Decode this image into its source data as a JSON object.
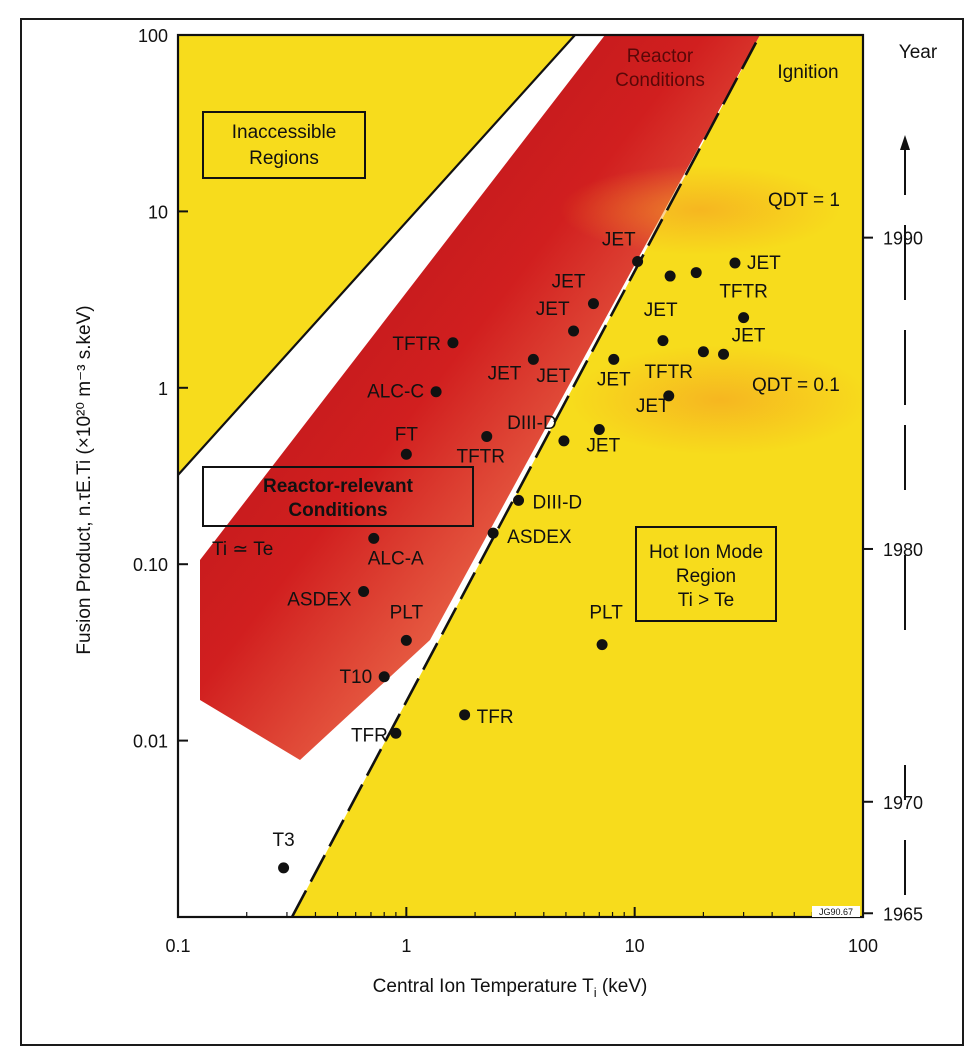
{
  "chart_data": {
    "type": "scatter",
    "x_scale": "log",
    "y_scale": "log",
    "xlim": [
      0.1,
      100
    ],
    "ylim": [
      0.001,
      100
    ],
    "xlabel": "Central Ion Temperature T",
    "xlabel_sub": "i",
    "xlabel_unit": " (keV)",
    "ylabel": "Fusion Product, n.τE.Ti (×10²⁰ m⁻³ s.keV)",
    "x_ticks": [
      {
        "value": 0.1,
        "label": "0.1"
      },
      {
        "value": 1,
        "label": "1"
      },
      {
        "value": 10,
        "label": "10"
      },
      {
        "value": 100,
        "label": "100"
      }
    ],
    "y_ticks": [
      {
        "value": 0.01,
        "label": "0.01"
      },
      {
        "value": 0.1,
        "label": "0.10"
      },
      {
        "value": 1,
        "label": "1"
      },
      {
        "value": 10,
        "label": "10"
      },
      {
        "value": 100,
        "label": "100"
      }
    ],
    "year_axis": {
      "title": "Year",
      "ticks": [
        {
          "year": 1965,
          "at_y": 0.00105
        },
        {
          "year": 1970,
          "at_y": 0.0045
        },
        {
          "year": 1980,
          "at_y": 0.122
        },
        {
          "year": 1990,
          "at_y": 7.1
        }
      ]
    },
    "points": [
      {
        "label": "T3",
        "x": 0.29,
        "y": 0.0019
      },
      {
        "label": "TFR",
        "x": 0.9,
        "y": 0.011
      },
      {
        "label": "TFR",
        "x": 1.8,
        "y": 0.014
      },
      {
        "label": "T10",
        "x": 0.8,
        "y": 0.023
      },
      {
        "label": "PLT",
        "x": 1.0,
        "y": 0.037
      },
      {
        "label": "ASDEX",
        "x": 0.65,
        "y": 0.07
      },
      {
        "label": "ALC-A",
        "x": 0.72,
        "y": 0.14
      },
      {
        "label": "ASDEX",
        "x": 2.4,
        "y": 0.15
      },
      {
        "label": "DIII-D",
        "x": 3.1,
        "y": 0.23
      },
      {
        "label": "FT",
        "x": 1.0,
        "y": 0.42
      },
      {
        "label": "TFTR",
        "x": 2.25,
        "y": 0.53
      },
      {
        "label": "DIII-D",
        "x": 4.9,
        "y": 0.5
      },
      {
        "label": "ALC-C",
        "x": 1.35,
        "y": 0.95
      },
      {
        "label": "TFTR",
        "x": 1.6,
        "y": 1.8
      },
      {
        "label": "JET",
        "x": 3.6,
        "y": 1.45
      },
      {
        "label": "JET",
        "x": 5.4,
        "y": 2.1
      },
      {
        "label": "JET",
        "x": 6.6,
        "y": 3.0
      },
      {
        "label": "JET",
        "x": 10.3,
        "y": 5.2
      },
      {
        "label": "JET",
        "x": 7.0,
        "y": 0.58
      },
      {
        "label": "JET",
        "x": 8.1,
        "y": 1.45
      },
      {
        "label": "PLT",
        "x": 7.2,
        "y": 0.035
      },
      {
        "label": "",
        "x": 13.3,
        "y": 1.85
      },
      {
        "label": "",
        "x": 14.3,
        "y": 4.3
      },
      {
        "label": "",
        "x": 18.6,
        "y": 4.5
      },
      {
        "label": "",
        "x": 20.0,
        "y": 1.6
      },
      {
        "label": "",
        "x": 24.5,
        "y": 1.55
      },
      {
        "label": "TFTR",
        "x": 14.1,
        "y": 0.9
      },
      {
        "label": "JET",
        "x": 27.5,
        "y": 5.1
      },
      {
        "label": "TFTR",
        "x": 30.0,
        "y": 2.5
      },
      {
        "label": "JET",
        "x": 30.0,
        "y": 2.5
      }
    ],
    "free_labels": [
      {
        "text": "JET",
        "x": 13.0,
        "y": 2.55
      },
      {
        "text": "JET",
        "x": 12.0,
        "y": 0.73
      },
      {
        "text": "JET",
        "x": 4.4,
        "y": 1.08
      }
    ],
    "regions": [
      {
        "name": "Inaccessible Regions",
        "lines": [
          "Inaccessible",
          "Regions"
        ]
      },
      {
        "name": "Reactor Conditions",
        "lines": [
          "Reactor",
          "Conditions"
        ]
      },
      {
        "name": "Ignition",
        "lines": [
          "Ignition"
        ]
      },
      {
        "name": "Reactor-relevant Conditions",
        "lines": [
          "Reactor-relevant",
          "Conditions"
        ]
      },
      {
        "name": "Hot Ion Mode Region",
        "lines": [
          "Hot Ion Mode",
          "Region",
          "Ti > Te"
        ]
      }
    ],
    "annotations": [
      {
        "text": "QDT = 1"
      },
      {
        "text": "QDT = 0.1"
      },
      {
        "text": "Ti ≃ Te"
      },
      {
        "text": "JG90.67"
      }
    ],
    "colors": {
      "background_yellow": "#f6dc1e",
      "reactor_red": "#c0161a",
      "reactor_orange": "#ef6a2a",
      "dot": "#111111"
    }
  }
}
